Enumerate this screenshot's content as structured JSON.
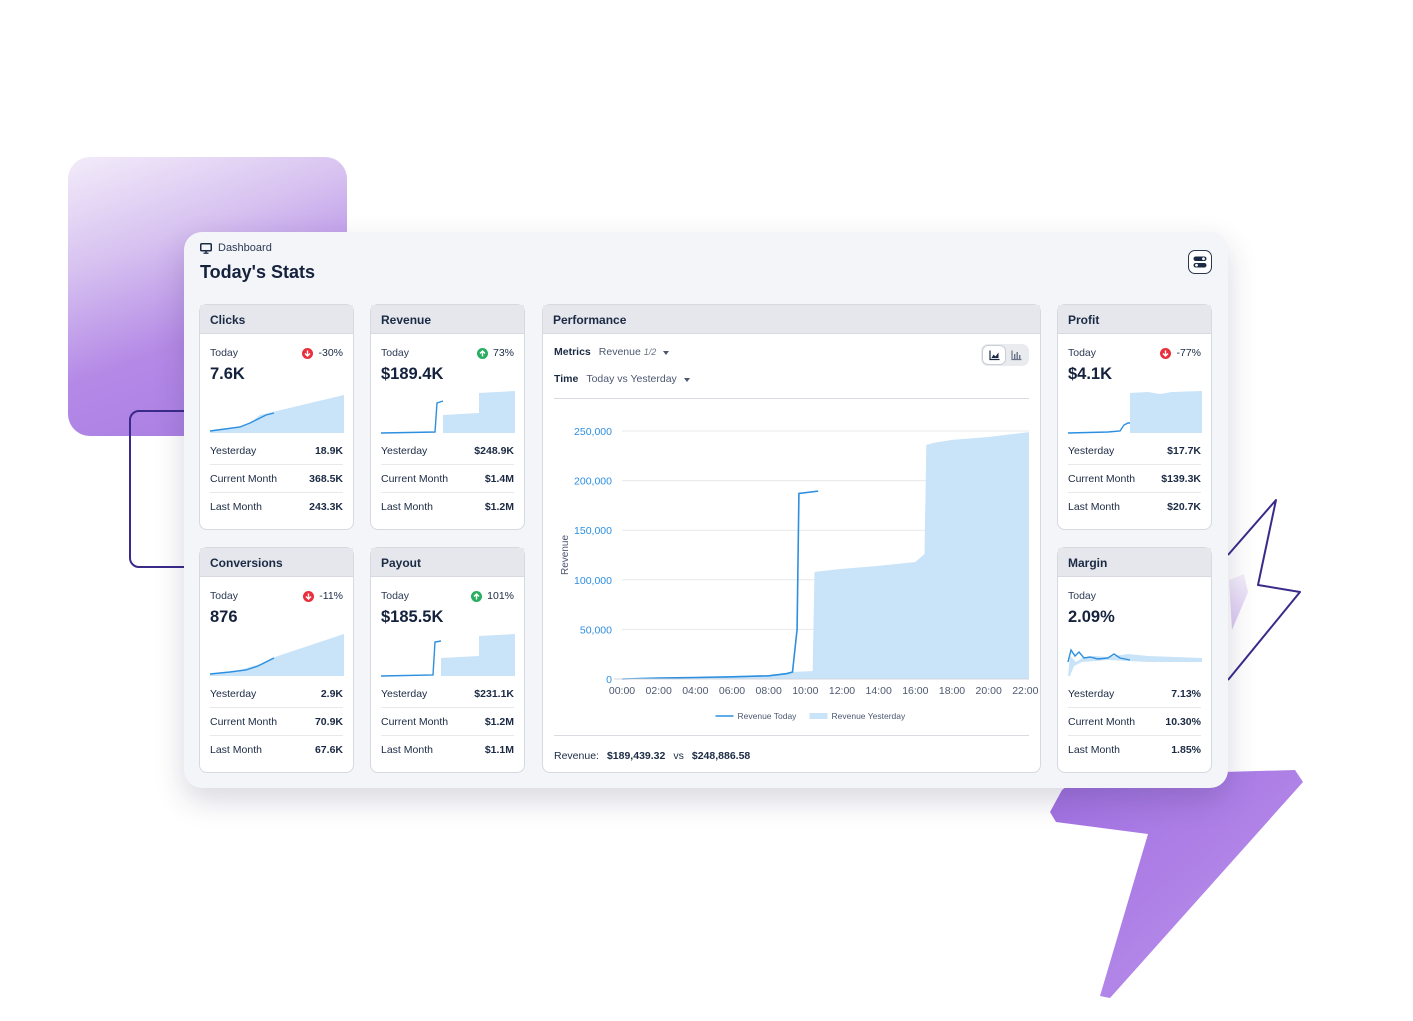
{
  "breadcrumb": "Dashboard",
  "page_title": "Today's Stats",
  "colors": {
    "accent": "#2d8fe0",
    "fill": "#c9e3f8",
    "down": "#e8303e",
    "up": "#27ae60",
    "bg_purple": "#a57be3"
  },
  "cards": {
    "clicks": {
      "title": "Clicks",
      "today_label": "Today",
      "change": "-30%",
      "direction": "down",
      "value": "7.6K",
      "rows": [
        {
          "label": "Yesterday",
          "value": "18.9K"
        },
        {
          "label": "Current Month",
          "value": "368.5K"
        },
        {
          "label": "Last Month",
          "value": "243.3K"
        }
      ]
    },
    "revenue": {
      "title": "Revenue",
      "today_label": "Today",
      "change": "73%",
      "direction": "up",
      "value": "$189.4K",
      "rows": [
        {
          "label": "Yesterday",
          "value": "$248.9K"
        },
        {
          "label": "Current Month",
          "value": "$1.4M"
        },
        {
          "label": "Last Month",
          "value": "$1.2M"
        }
      ]
    },
    "conversions": {
      "title": "Conversions",
      "today_label": "Today",
      "change": "-11%",
      "direction": "down",
      "value": "876",
      "rows": [
        {
          "label": "Yesterday",
          "value": "2.9K"
        },
        {
          "label": "Current Month",
          "value": "70.9K"
        },
        {
          "label": "Last Month",
          "value": "67.6K"
        }
      ]
    },
    "payout": {
      "title": "Payout",
      "today_label": "Today",
      "change": "101%",
      "direction": "up",
      "value": "$185.5K",
      "rows": [
        {
          "label": "Yesterday",
          "value": "$231.1K"
        },
        {
          "label": "Current Month",
          "value": "$1.2M"
        },
        {
          "label": "Last Month",
          "value": "$1.1M"
        }
      ]
    },
    "profit": {
      "title": "Profit",
      "today_label": "Today",
      "change": "-77%",
      "direction": "down",
      "value": "$4.1K",
      "rows": [
        {
          "label": "Yesterday",
          "value": "$17.7K"
        },
        {
          "label": "Current Month",
          "value": "$139.3K"
        },
        {
          "label": "Last Month",
          "value": "$20.7K"
        }
      ]
    },
    "margin": {
      "title": "Margin",
      "today_label": "Today",
      "value": "2.09%",
      "rows": [
        {
          "label": "Yesterday",
          "value": "7.13%"
        },
        {
          "label": "Current Month",
          "value": "10.30%"
        },
        {
          "label": "Last Month",
          "value": "1.85%"
        }
      ]
    }
  },
  "performance": {
    "title": "Performance",
    "metrics_label": "Metrics",
    "metrics_value": "Revenue",
    "metrics_count": "1/2",
    "time_label": "Time",
    "time_value": "Today vs Yesterday",
    "view_options": [
      "area-chart-icon",
      "bar-chart-icon"
    ],
    "footer_label": "Revenue:",
    "footer_today": "$189,439.32",
    "footer_vs": "vs",
    "footer_yesterday": "$248,886.58"
  },
  "chart_data": {
    "type": "area",
    "ylabel": "Revenue",
    "xlabel": "",
    "x_ticks": [
      "00:00",
      "02:00",
      "04:00",
      "06:00",
      "08:00",
      "10:00",
      "12:00",
      "14:00",
      "16:00",
      "18:00",
      "20:00",
      "22:00"
    ],
    "y_ticks": [
      0,
      50000,
      100000,
      150000,
      200000,
      250000
    ],
    "ylim": [
      0,
      250000
    ],
    "xlim_hours": [
      0,
      22.2
    ],
    "legend_position": "bottom",
    "series": [
      {
        "name": "Revenue Today",
        "style": "line",
        "x": [
          0,
          2,
          4,
          6,
          8,
          9,
          9.3,
          9.55,
          9.65,
          10.7
        ],
        "y": [
          0,
          1000,
          1500,
          2200,
          3200,
          5500,
          7000,
          50000,
          187000,
          189400
        ]
      },
      {
        "name": "Revenue Yesterday",
        "style": "area",
        "x": [
          0,
          8,
          9.3,
          9.4,
          10.4,
          10.5,
          12,
          14,
          16,
          16.5,
          16.6,
          17,
          18,
          20,
          22.2
        ],
        "y": [
          0,
          3500,
          7000,
          7200,
          8000,
          108000,
          111000,
          114000,
          118000,
          126000,
          236000,
          238000,
          241000,
          244000,
          248900
        ]
      }
    ]
  }
}
